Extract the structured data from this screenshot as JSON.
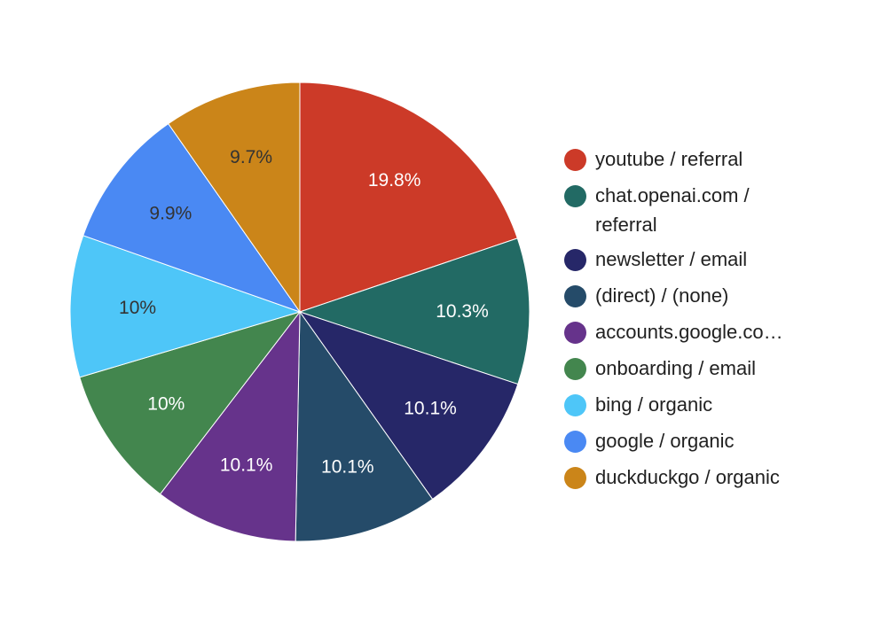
{
  "chart_data": {
    "type": "pie",
    "title": "",
    "legend_position": "right",
    "slices": [
      {
        "label": "youtube / referral",
        "value": 19.8,
        "value_label": "19.8%",
        "color": "#CC3A28",
        "label_color": "#ffffff"
      },
      {
        "label": "chat.openai.com / referral",
        "value": 10.3,
        "value_label": "10.3%",
        "color": "#226A64",
        "label_color": "#ffffff"
      },
      {
        "label": "newsletter / email",
        "value": 10.1,
        "value_label": "10.1%",
        "color": "#262768",
        "label_color": "#ffffff"
      },
      {
        "label": "(direct) / (none)",
        "value": 10.1,
        "value_label": "10.1%",
        "color": "#254B69",
        "label_color": "#ffffff"
      },
      {
        "label": "accounts.google.co…",
        "value": 10.1,
        "value_label": "10.1%",
        "color": "#66338B",
        "label_color": "#ffffff"
      },
      {
        "label": "onboarding / email",
        "value": 10.0,
        "value_label": "10%",
        "color": "#43864E",
        "label_color": "#ffffff"
      },
      {
        "label": "bing / organic",
        "value": 10.0,
        "value_label": "10%",
        "color": "#4EC6F8",
        "label_color": "#333333"
      },
      {
        "label": "google / organic",
        "value": 9.9,
        "value_label": "9.9%",
        "color": "#4A89F3",
        "label_color": "#333333"
      },
      {
        "label": "duckduckgo / organic",
        "value": 9.7,
        "value_label": "9.7%",
        "color": "#CB8519",
        "label_color": "#333333"
      }
    ]
  },
  "legend": {
    "items": [
      {
        "text": "youtube / referral",
        "color": "#CC3A28"
      },
      {
        "text": "chat.openai.com / referral",
        "color": "#226A64"
      },
      {
        "text": "newsletter / email",
        "color": "#262768"
      },
      {
        "text": "(direct) / (none)",
        "color": "#254B69"
      },
      {
        "text": "accounts.google.co…",
        "color": "#66338B"
      },
      {
        "text": "onboarding / email",
        "color": "#43864E"
      },
      {
        "text": "bing / organic",
        "color": "#4EC6F8"
      },
      {
        "text": "google / organic",
        "color": "#4A89F3"
      },
      {
        "text": "duckduckgo / organic",
        "color": "#CB8519"
      }
    ]
  }
}
